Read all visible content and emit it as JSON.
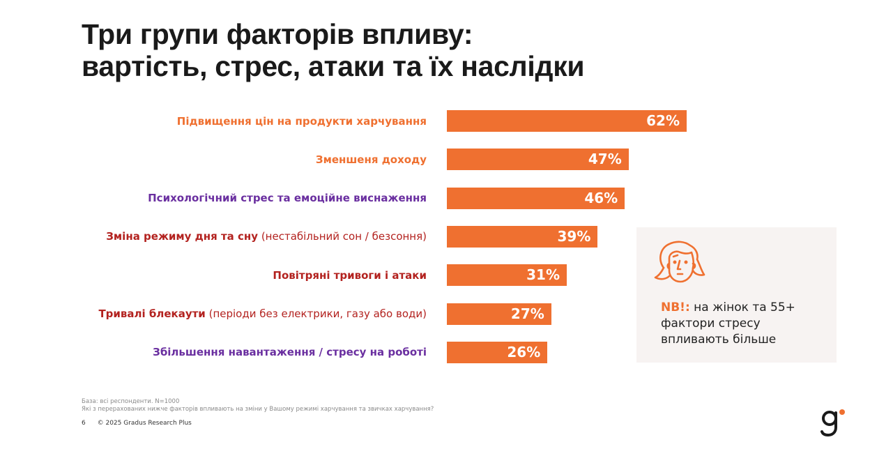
{
  "title": {
    "line1": "Три групи факторів впливу:",
    "line2": "вартість, стрес, атаки та їх наслідки"
  },
  "colors": {
    "bar": "#ef7030",
    "cost_label": "#ef7030",
    "stress_label": "#6a2fa0",
    "attack_label": "#b3221f",
    "nb_box_bg": "#f7f3f2",
    "logo_dot": "#ef7030"
  },
  "chart_data": {
    "type": "bar",
    "orientation": "horizontal",
    "title": "Три групи факторів впливу: вартість, стрес, атаки та їх наслідки",
    "xlabel": "",
    "ylabel": "",
    "unit": "%",
    "xlim": [
      0,
      100
    ],
    "grid": false,
    "legend": null,
    "categories": [
      "Підвищення цін на продукти харчування",
      "Зменшеня доходу",
      "Психологічний стрес та емоційне виснаження",
      "Зміна режиму дня та сну (нестабільний сон / безсоння)",
      "Повітряні тривоги і атаки",
      "Тривалі блекаути (періоди без електрики, газу або води)",
      "Збільшення навантаження / стресу на роботі"
    ],
    "values": [
      62,
      47,
      46,
      39,
      31,
      27,
      26
    ],
    "items": [
      {
        "label_bold": "Підвищення цін на продукти харчування",
        "label_normal": "",
        "group": "cost",
        "value": 62,
        "value_label": "62%"
      },
      {
        "label_bold": "Зменшеня доходу",
        "label_normal": "",
        "group": "cost",
        "value": 47,
        "value_label": "47%"
      },
      {
        "label_bold": "Психологічний стрес та емоційне виснаження",
        "label_normal": "",
        "group": "stress",
        "value": 46,
        "value_label": "46%"
      },
      {
        "label_bold": "Зміна режиму дня та сну",
        "label_normal": " (нестабільний сон / безсоння)",
        "group": "attack",
        "value": 39,
        "value_label": "39%"
      },
      {
        "label_bold": "Повітряні тривоги і атаки",
        "label_normal": "",
        "group": "attack",
        "value": 31,
        "value_label": "31%"
      },
      {
        "label_bold": "Тривалі блекаути",
        "label_normal": " (періоди без електрики, газу або води)",
        "group": "attack",
        "value": 27,
        "value_label": "27%"
      },
      {
        "label_bold": "Збільшення навантаження / стресу на роботі",
        "label_normal": "",
        "group": "stress",
        "value": 26,
        "value_label": "26%"
      }
    ]
  },
  "callout": {
    "icon": "woman-face-icon",
    "key": "NB!:",
    "line1": " на жінок та 55+",
    "line2": "фактори стресу",
    "line3": "впливають більше"
  },
  "footnote": {
    "base": "База: всі респонденти. N=1000",
    "question": "Які з перерахованих нижче факторів впливають на зміни у Вашому режимі харчування та звичках харчування?"
  },
  "footer": {
    "page_number": "6",
    "copyright": "© 2025 Gradus Research Plus"
  },
  "logo": {
    "icon": "gradus-logo-icon"
  }
}
